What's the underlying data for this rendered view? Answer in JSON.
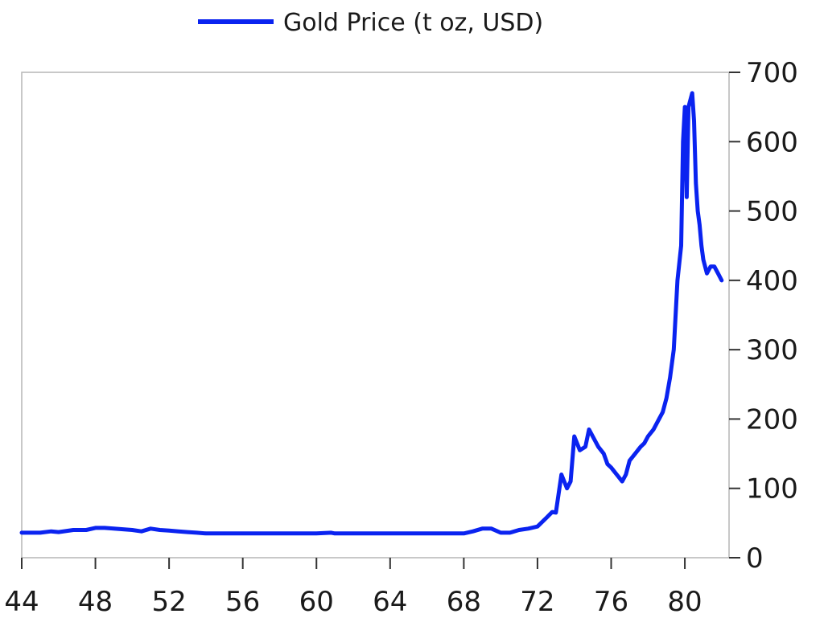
{
  "chart_data": {
    "type": "line",
    "title": "",
    "xlabel": "",
    "ylabel": "",
    "x_tick_labels": [
      "44",
      "48",
      "52",
      "56",
      "60",
      "64",
      "68",
      "72",
      "76",
      "80"
    ],
    "x_ticks": [
      1944,
      1948,
      1952,
      1956,
      1960,
      1964,
      1968,
      1972,
      1976,
      1980
    ],
    "y_tick_labels": [
      "0",
      "100",
      "200",
      "300",
      "400",
      "500",
      "600",
      "700"
    ],
    "y_ticks": [
      0,
      100,
      200,
      300,
      400,
      500,
      600,
      700
    ],
    "xlim": [
      1944,
      1982.4
    ],
    "ylim": [
      0,
      700
    ],
    "y_axis_side": "right",
    "grid": false,
    "legend_position": "top-center",
    "series": [
      {
        "name": "Gold Price (t oz, USD)",
        "color": "#0a23f0",
        "x": [
          1944,
          1945,
          1945.6,
          1946,
          1946.8,
          1947,
          1947.5,
          1948,
          1948.5,
          1949,
          1949.5,
          1950,
          1950.5,
          1951,
          1951.5,
          1952,
          1952.5,
          1953,
          1953.5,
          1954,
          1955,
          1956,
          1957,
          1958,
          1959,
          1960,
          1960.8,
          1961,
          1962,
          1963,
          1964,
          1965,
          1966,
          1967,
          1968,
          1968.5,
          1969,
          1969.5,
          1970,
          1970.5,
          1971,
          1971.5,
          1972,
          1972.5,
          1972.8,
          1973,
          1973.3,
          1973.6,
          1973.8,
          1974,
          1974.3,
          1974.6,
          1974.8,
          1975,
          1975.3,
          1975.6,
          1975.8,
          1976,
          1976.3,
          1976.6,
          1976.8,
          1977,
          1977.3,
          1977.6,
          1977.8,
          1978,
          1978.3,
          1978.6,
          1978.8,
          1979,
          1979.2,
          1979.4,
          1979.6,
          1979.8,
          1979.9,
          1980,
          1980.1,
          1980.2,
          1980.3,
          1980.4,
          1980.5,
          1980.6,
          1980.7,
          1980.8,
          1980.9,
          1981,
          1981.2,
          1981.4,
          1981.6,
          1981.8,
          1982
        ],
        "values": [
          36,
          36,
          38,
          37,
          40,
          40,
          40,
          43,
          43,
          42,
          41,
          40,
          38,
          42,
          40,
          39,
          38,
          37,
          36,
          35,
          35,
          35,
          35,
          35,
          35,
          35,
          36,
          35,
          35,
          35,
          35,
          35,
          35,
          35,
          35,
          38,
          42,
          42,
          36,
          36,
          40,
          42,
          45,
          58,
          66,
          65,
          120,
          100,
          110,
          175,
          155,
          160,
          185,
          175,
          160,
          150,
          135,
          130,
          120,
          110,
          120,
          140,
          150,
          160,
          165,
          175,
          185,
          200,
          210,
          230,
          260,
          300,
          400,
          450,
          600,
          650,
          520,
          650,
          660,
          670,
          630,
          540,
          500,
          480,
          450,
          430,
          410,
          420,
          420,
          410,
          400
        ]
      }
    ]
  }
}
